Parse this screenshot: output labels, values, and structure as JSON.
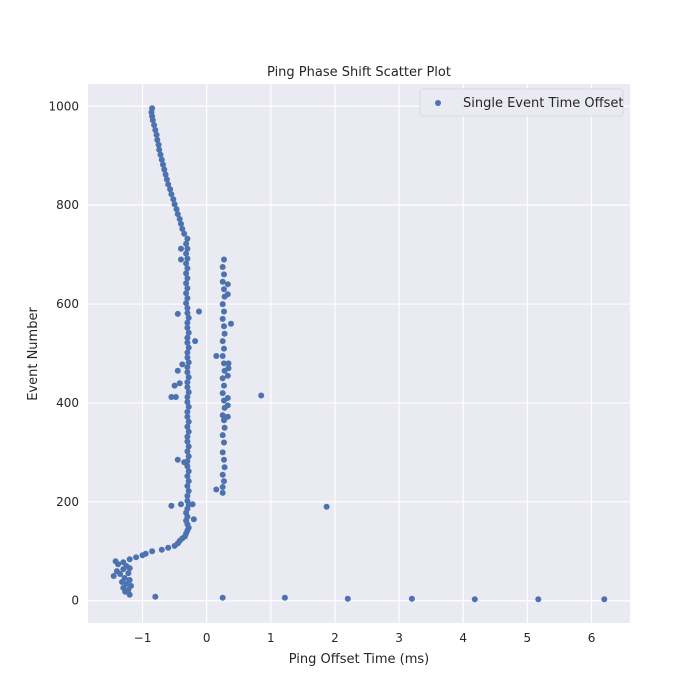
{
  "chart_data": {
    "type": "scatter",
    "title": "Ping Phase Shift Scatter Plot",
    "xlabel": "Ping Offset Time (ms)",
    "ylabel": "Event Number",
    "xlim": [
      -1.85,
      6.6
    ],
    "ylim": [
      -45,
      1045
    ],
    "xticks": [
      -1,
      0,
      1,
      2,
      3,
      4,
      5,
      6
    ],
    "xtick_labels": [
      "−1",
      "0",
      "1",
      "2",
      "3",
      "4",
      "5",
      "6"
    ],
    "yticks": [
      0,
      200,
      400,
      600,
      800,
      1000
    ],
    "ytick_labels": [
      "0",
      "200",
      "400",
      "600",
      "800",
      "1000"
    ],
    "grid": true,
    "legend_position": "top-right",
    "colors": {
      "marker": "#4c72b0",
      "plot_bg": "#eaeaf2",
      "grid": "#ffffff"
    },
    "series": [
      {
        "name": "Single Event Time Offset",
        "points": [
          [
            -1.2,
            12
          ],
          [
            -1.27,
            18
          ],
          [
            -1.22,
            22
          ],
          [
            -1.3,
            26
          ],
          [
            -1.18,
            30
          ],
          [
            -1.25,
            34
          ],
          [
            -1.32,
            38
          ],
          [
            -1.2,
            42
          ],
          [
            -1.28,
            46
          ],
          [
            -1.45,
            50
          ],
          [
            -1.35,
            54
          ],
          [
            -1.22,
            56
          ],
          [
            -1.4,
            60
          ],
          [
            -1.3,
            64
          ],
          [
            -1.2,
            66
          ],
          [
            -1.25,
            70
          ],
          [
            -1.38,
            74
          ],
          [
            -1.3,
            78
          ],
          [
            -1.42,
            80
          ],
          [
            -1.2,
            84
          ],
          [
            -1.1,
            88
          ],
          [
            -1.0,
            92
          ],
          [
            -0.95,
            95
          ],
          [
            -0.85,
            100
          ],
          [
            -0.7,
            103
          ],
          [
            -0.6,
            107
          ],
          [
            -0.5,
            111
          ],
          [
            -0.45,
            116
          ],
          [
            -0.42,
            121
          ],
          [
            -0.38,
            126
          ],
          [
            -0.34,
            130
          ],
          [
            -0.32,
            136
          ],
          [
            -0.3,
            142
          ],
          [
            -0.28,
            148
          ],
          [
            -0.3,
            155
          ],
          [
            -0.32,
            162
          ],
          [
            -0.3,
            170
          ],
          [
            -0.32,
            178
          ],
          [
            -0.3,
            186
          ],
          [
            -0.28,
            194
          ],
          [
            -0.3,
            202
          ],
          [
            -0.3,
            212
          ],
          [
            -0.28,
            222
          ],
          [
            -0.3,
            232
          ],
          [
            -0.28,
            242
          ],
          [
            -0.3,
            252
          ],
          [
            -0.28,
            262
          ],
          [
            -0.3,
            272
          ],
          [
            -0.3,
            282
          ],
          [
            -0.28,
            292
          ],
          [
            -0.3,
            302
          ],
          [
            -0.28,
            312
          ],
          [
            -0.3,
            322
          ],
          [
            -0.3,
            332
          ],
          [
            -0.28,
            342
          ],
          [
            -0.3,
            352
          ],
          [
            -0.28,
            362
          ],
          [
            -0.3,
            372
          ],
          [
            -0.3,
            382
          ],
          [
            -0.28,
            392
          ],
          [
            -0.3,
            402
          ],
          [
            -0.3,
            412
          ],
          [
            -0.28,
            422
          ],
          [
            -0.3,
            432
          ],
          [
            -0.3,
            442
          ],
          [
            -0.28,
            452
          ],
          [
            -0.3,
            462
          ],
          [
            -0.3,
            472
          ],
          [
            -0.28,
            482
          ],
          [
            -0.3,
            492
          ],
          [
            -0.3,
            502
          ],
          [
            -0.28,
            512
          ],
          [
            -0.3,
            522
          ],
          [
            -0.3,
            532
          ],
          [
            -0.28,
            542
          ],
          [
            -0.3,
            552
          ],
          [
            -0.3,
            562
          ],
          [
            -0.28,
            572
          ],
          [
            -0.3,
            582
          ],
          [
            -0.3,
            592
          ],
          [
            -0.32,
            602
          ],
          [
            -0.3,
            612
          ],
          [
            -0.32,
            622
          ],
          [
            -0.3,
            632
          ],
          [
            -0.32,
            642
          ],
          [
            -0.3,
            652
          ],
          [
            -0.32,
            662
          ],
          [
            -0.3,
            672
          ],
          [
            -0.32,
            682
          ],
          [
            -0.3,
            692
          ],
          [
            -0.32,
            702
          ],
          [
            -0.3,
            712
          ],
          [
            -0.32,
            722
          ],
          [
            -0.3,
            732
          ],
          [
            -0.35,
            742
          ],
          [
            -0.38,
            752
          ],
          [
            -0.4,
            762
          ],
          [
            -0.42,
            772
          ],
          [
            -0.45,
            782
          ],
          [
            -0.47,
            792
          ],
          [
            -0.5,
            802
          ],
          [
            -0.52,
            812
          ],
          [
            -0.55,
            822
          ],
          [
            -0.57,
            832
          ],
          [
            -0.6,
            842
          ],
          [
            -0.62,
            852
          ],
          [
            -0.64,
            862
          ],
          [
            -0.66,
            872
          ],
          [
            -0.68,
            882
          ],
          [
            -0.7,
            892
          ],
          [
            -0.72,
            902
          ],
          [
            -0.74,
            912
          ],
          [
            -0.75,
            922
          ],
          [
            -0.77,
            932
          ],
          [
            -0.78,
            942
          ],
          [
            -0.8,
            952
          ],
          [
            -0.82,
            962
          ],
          [
            -0.84,
            972
          ],
          [
            -0.85,
            980
          ],
          [
            -0.86,
            988
          ],
          [
            -0.85,
            996
          ],
          [
            -0.4,
            195
          ],
          [
            -0.22,
            195
          ],
          [
            -0.55,
            192
          ],
          [
            -0.2,
            165
          ],
          [
            -0.45,
            285
          ],
          [
            -0.35,
            280
          ],
          [
            -0.5,
            435
          ],
          [
            -0.42,
            440
          ],
          [
            -0.45,
            465
          ],
          [
            -0.38,
            478
          ],
          [
            -0.48,
            412
          ],
          [
            -0.55,
            412
          ],
          [
            -0.4,
            690
          ],
          [
            -0.4,
            712
          ],
          [
            -0.12,
            585
          ],
          [
            -0.18,
            525
          ],
          [
            -0.45,
            580
          ],
          [
            0.25,
            218
          ],
          [
            0.25,
            230
          ],
          [
            0.27,
            242
          ],
          [
            0.25,
            255
          ],
          [
            0.28,
            270
          ],
          [
            0.27,
            285
          ],
          [
            0.25,
            300
          ],
          [
            0.27,
            320
          ],
          [
            0.25,
            335
          ],
          [
            0.28,
            350
          ],
          [
            0.27,
            365
          ],
          [
            0.25,
            375
          ],
          [
            0.28,
            390
          ],
          [
            0.27,
            405
          ],
          [
            0.25,
            420
          ],
          [
            0.27,
            435
          ],
          [
            0.25,
            450
          ],
          [
            0.28,
            465
          ],
          [
            0.27,
            480
          ],
          [
            0.25,
            495
          ],
          [
            0.27,
            510
          ],
          [
            0.25,
            525
          ],
          [
            0.28,
            540
          ],
          [
            0.27,
            555
          ],
          [
            0.25,
            570
          ],
          [
            0.27,
            585
          ],
          [
            0.25,
            600
          ],
          [
            0.28,
            615
          ],
          [
            0.27,
            630
          ],
          [
            0.25,
            645
          ],
          [
            0.27,
            660
          ],
          [
            0.25,
            675
          ],
          [
            0.27,
            690
          ],
          [
            0.33,
            640
          ],
          [
            0.33,
            620
          ],
          [
            0.38,
            560
          ],
          [
            0.34,
            480
          ],
          [
            0.34,
            470
          ],
          [
            0.33,
            455
          ],
          [
            0.33,
            410
          ],
          [
            0.33,
            395
          ],
          [
            0.33,
            372
          ],
          [
            0.15,
            225
          ],
          [
            0.15,
            495
          ],
          [
            0.85,
            415
          ],
          [
            1.87,
            190
          ],
          [
            -0.8,
            8
          ],
          [
            0.25,
            6
          ],
          [
            1.22,
            6
          ],
          [
            2.2,
            4
          ],
          [
            3.2,
            4
          ],
          [
            4.18,
            3
          ],
          [
            5.17,
            3
          ],
          [
            6.2,
            3
          ]
        ]
      }
    ]
  }
}
